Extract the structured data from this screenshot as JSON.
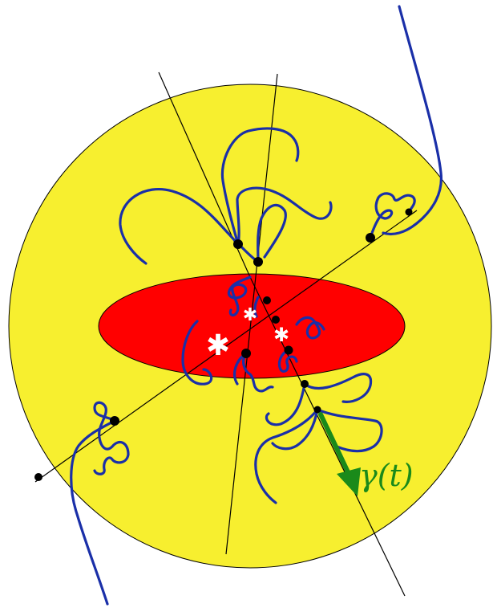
{
  "diagram": {
    "curve_label": "γ(t)",
    "colors": {
      "outer_region": "#f7ef2f",
      "inner_region": "#ff0000",
      "paths": "#1a2fa8",
      "lines": "#000000",
      "arrow": "#1a8a1a",
      "stars": "#ffffff",
      "points": "#000000"
    }
  }
}
